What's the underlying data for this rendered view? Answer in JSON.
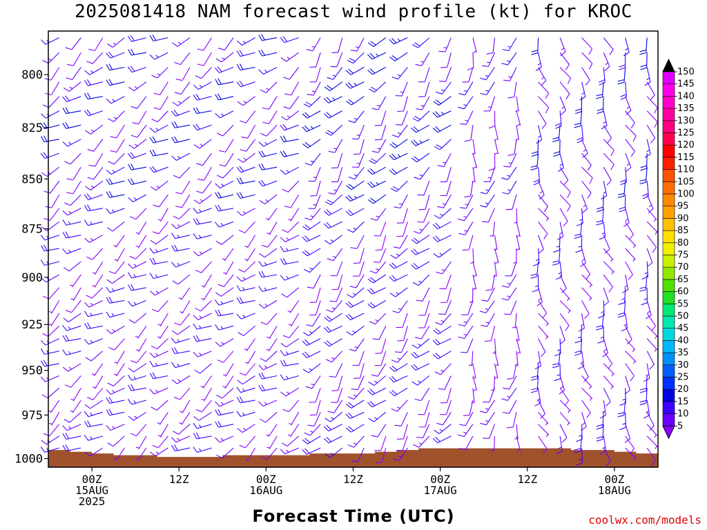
{
  "title": "2025081418 NAM forecast wind profile (kt) for KROC",
  "x_axis_title": "Forecast Time (UTC)",
  "credit": "coolwx.com/models",
  "chart_data": {
    "type": "wind_barb_time_height",
    "title": "2025081418 NAM forecast wind profile (kt) for KROC",
    "xlabel": "Forecast Time (UTC)",
    "y_ticks": [
      800,
      825,
      850,
      875,
      900,
      925,
      950,
      975,
      1000
    ],
    "y_range_hpa": [
      780,
      1005
    ],
    "y_scale": "log-pressure",
    "x_range_hours": [
      -6,
      78
    ],
    "x_ticks": [
      {
        "hour": 0,
        "lines": [
          "00Z",
          "15AUG",
          "2025"
        ]
      },
      {
        "hour": 12,
        "lines": [
          "12Z"
        ]
      },
      {
        "hour": 24,
        "lines": [
          "00Z",
          "16AUG"
        ]
      },
      {
        "hour": 36,
        "lines": [
          "12Z"
        ]
      },
      {
        "hour": 48,
        "lines": [
          "00Z",
          "17AUG"
        ]
      },
      {
        "hour": 60,
        "lines": [
          "12Z"
        ]
      },
      {
        "hour": 72,
        "lines": [
          "00Z",
          "18AUG"
        ]
      }
    ],
    "colorbar_levels": [
      5,
      10,
      15,
      20,
      25,
      30,
      35,
      40,
      45,
      50,
      55,
      60,
      65,
      70,
      75,
      80,
      85,
      90,
      95,
      100,
      105,
      110,
      115,
      120,
      125,
      130,
      135,
      140,
      145,
      150
    ],
    "colorbar_colors": [
      "#8a00ff",
      "#6a00ff",
      "#3c00ff",
      "#0000e0",
      "#0030ff",
      "#0060ff",
      "#0090ff",
      "#00b8ff",
      "#00d8e0",
      "#00e8b0",
      "#00e870",
      "#20e020",
      "#50e000",
      "#90e800",
      "#c8f000",
      "#f0f000",
      "#ffe000",
      "#ffc000",
      "#ffa000",
      "#ff8800",
      "#ff7000",
      "#ff5000",
      "#ff2000",
      "#ff0000",
      "#ff0050",
      "#ff0080",
      "#ff00a0",
      "#ff00c8",
      "#ff00e8",
      "#e000ff"
    ],
    "terrain_pressure_hpa": [
      {
        "hour": -6,
        "p": 995
      },
      {
        "hour": -3,
        "p": 996
      },
      {
        "hour": 0,
        "p": 997
      },
      {
        "hour": 3,
        "p": 998
      },
      {
        "hour": 6,
        "p": 998
      },
      {
        "hour": 9,
        "p": 999
      },
      {
        "hour": 12,
        "p": 999
      },
      {
        "hour": 15,
        "p": 999
      },
      {
        "hour": 18,
        "p": 998
      },
      {
        "hour": 21,
        "p": 998
      },
      {
        "hour": 24,
        "p": 998
      },
      {
        "hour": 27,
        "p": 998
      },
      {
        "hour": 30,
        "p": 997
      },
      {
        "hour": 33,
        "p": 997
      },
      {
        "hour": 36,
        "p": 997
      },
      {
        "hour": 39,
        "p": 996
      },
      {
        "hour": 42,
        "p": 995
      },
      {
        "hour": 45,
        "p": 994
      },
      {
        "hour": 48,
        "p": 994
      },
      {
        "hour": 51,
        "p": 994
      },
      {
        "hour": 54,
        "p": 994
      },
      {
        "hour": 57,
        "p": 994
      },
      {
        "hour": 60,
        "p": 994
      },
      {
        "hour": 63,
        "p": 994
      },
      {
        "hour": 66,
        "p": 995
      },
      {
        "hour": 69,
        "p": 995
      },
      {
        "hour": 72,
        "p": 996
      },
      {
        "hour": 75,
        "p": 997
      },
      {
        "hour": 78,
        "p": 997
      }
    ],
    "terrain_color": "#a0522d",
    "wind_regimes": [
      {
        "from_hour": -6,
        "to_hour": 30,
        "direction_deg": 235,
        "speed_kt": 12
      },
      {
        "from_hour": 30,
        "to_hour": 50,
        "direction_deg": 220,
        "speed_kt": 14
      },
      {
        "from_hour": 50,
        "to_hour": 60,
        "direction_deg": 190,
        "speed_kt": 8
      },
      {
        "from_hour": 60,
        "to_hour": 78,
        "direction_deg": 160,
        "speed_kt": 12
      }
    ]
  }
}
